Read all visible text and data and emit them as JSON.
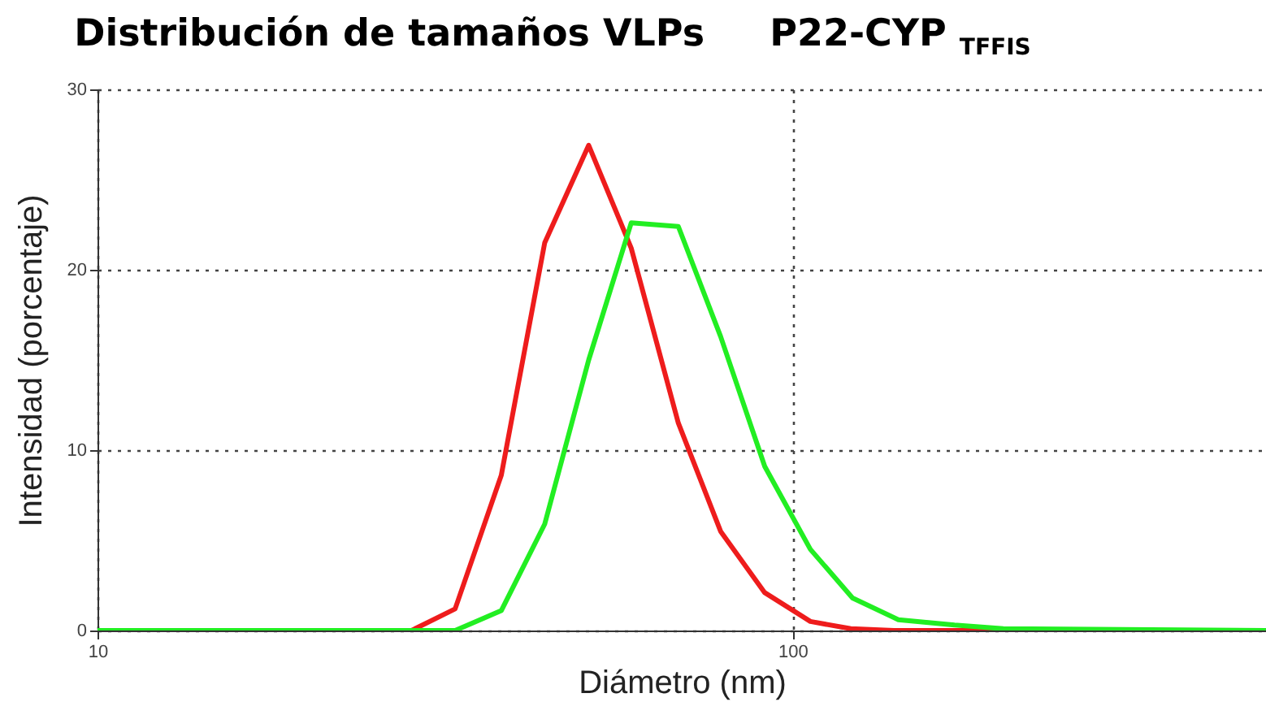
{
  "chart_data": {
    "type": "line",
    "title": "Distribución de tamaños VLPs     P22-CYP $_{TFFIS}$",
    "xlabel": "Diámetro (nm)",
    "ylabel": "Intensidad (porcentaje)",
    "log": "x",
    "xlim": [
      10,
      480
    ],
    "xticks": [
      10,
      100
    ],
    "ylim": [
      0,
      30
    ],
    "yticks": [
      0,
      10,
      20,
      30
    ],
    "grid": true,
    "marker": "none",
    "line_style": "solid",
    "series": [
      {
        "color": "#ee1c1c",
        "x": [
          10,
          28.3,
          32.7,
          38.1,
          44.0,
          50.9,
          58.6,
          68.5,
          78.8,
          91.2,
          106.1,
          121.3,
          140,
          480
        ],
        "values": [
          0,
          0,
          1.2,
          8.6,
          21.5,
          26.9,
          21.2,
          11.5,
          5.5,
          2.1,
          0.5,
          0.1,
          0,
          0
        ]
      },
      {
        "color": "#22ee22",
        "x": [
          10,
          32.7,
          38.1,
          44.0,
          50.9,
          58.6,
          68.5,
          78.8,
          91.2,
          106.1,
          122,
          142,
          171,
          201,
          480
        ],
        "values": [
          0,
          0,
          1.1,
          5.9,
          15.0,
          22.6,
          22.4,
          16.3,
          9.1,
          4.5,
          1.8,
          0.6,
          0.3,
          0.1,
          0
        ]
      }
    ]
  }
}
